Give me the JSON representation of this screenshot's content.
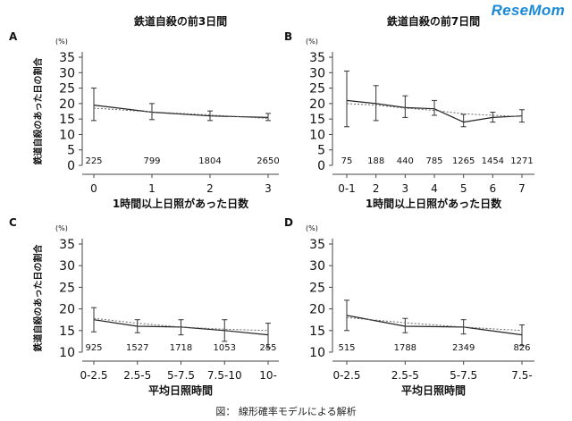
{
  "logo": "ReseMom",
  "caption": "図： 線形確率モデルによる解析",
  "chart_data": [
    {
      "panel": "A",
      "type": "line",
      "title": "鉄道自殺の前3日間",
      "unit": "(%)",
      "ylabel": "鉄道自殺のあった日の割合",
      "xlabel": "1時間以上日照があった日数",
      "categories": [
        "0",
        "1",
        "2",
        "3"
      ],
      "n": [
        "225",
        "799",
        "1804",
        "2650"
      ],
      "ylim": [
        0,
        35
      ],
      "yticks": [
        0,
        5,
        10,
        15,
        20,
        25,
        30,
        35
      ],
      "series": [
        {
          "style": "solid",
          "values": [
            19.5,
            17.2,
            16.0,
            15.5
          ],
          "error_low": [
            14.5,
            14.8,
            14.5,
            14.5
          ],
          "error_high": [
            25.0,
            20.0,
            17.6,
            16.8
          ]
        },
        {
          "style": "dotted",
          "values": [
            18.5,
            17.3,
            16.3,
            15.2
          ]
        }
      ]
    },
    {
      "panel": "B",
      "type": "line",
      "title": "鉄道自殺の前7日間",
      "unit": "(%)",
      "ylabel": "",
      "xlabel": "1時間以上日照があった日数",
      "categories": [
        "0-1",
        "2",
        "3",
        "4",
        "5",
        "6",
        "7"
      ],
      "n": [
        "75",
        "188",
        "440",
        "785",
        "1265",
        "1454",
        "1271"
      ],
      "ylim": [
        0,
        35
      ],
      "yticks": [
        0,
        5,
        10,
        15,
        20,
        25,
        30,
        35
      ],
      "series": [
        {
          "style": "solid",
          "values": [
            21.0,
            20.0,
            18.7,
            18.3,
            14.0,
            15.5,
            16.0
          ],
          "error_low": [
            12.5,
            14.5,
            15.5,
            16.2,
            12.5,
            14.0,
            14.0
          ],
          "error_high": [
            30.5,
            25.8,
            22.5,
            21.0,
            16.5,
            17.2,
            18.0
          ]
        },
        {
          "style": "dotted",
          "values": [
            20.0,
            19.5,
            18.5,
            17.8,
            16.7,
            16.2,
            15.8
          ]
        }
      ]
    },
    {
      "panel": "C",
      "type": "line",
      "title": "",
      "unit": "(%)",
      "ylabel": "鉄道自殺のあった日の割合",
      "xlabel": "平均日照時間",
      "categories": [
        "0-2.5",
        "2.5-5",
        "5-7.5",
        "7.5-10",
        "10-"
      ],
      "n": [
        "925",
        "1527",
        "1718",
        "1053",
        "255"
      ],
      "ylim": [
        10,
        35
      ],
      "yticks": [
        10,
        15,
        20,
        25,
        30,
        35
      ],
      "series": [
        {
          "style": "solid",
          "values": [
            17.5,
            16.0,
            15.8,
            15.0,
            14.0
          ],
          "error_low": [
            14.7,
            14.5,
            14.0,
            12.5,
            11.0
          ],
          "error_high": [
            20.3,
            17.5,
            17.5,
            17.5,
            16.7
          ]
        },
        {
          "style": "dotted",
          "values": [
            17.8,
            16.7,
            15.8,
            15.3,
            15.0
          ]
        }
      ]
    },
    {
      "panel": "D",
      "type": "line",
      "title": "",
      "unit": "(%)",
      "ylabel": "",
      "xlabel": "平均日照時間",
      "categories": [
        "0-2.5",
        "2.5-5",
        "5-7.5",
        "7.5-"
      ],
      "n": [
        "515",
        "1788",
        "2349",
        "826"
      ],
      "ylim": [
        10,
        35
      ],
      "yticks": [
        10,
        15,
        20,
        25,
        30,
        35
      ],
      "series": [
        {
          "style": "solid",
          "values": [
            18.5,
            16.0,
            15.8,
            14.0
          ],
          "error_low": [
            15.0,
            14.5,
            14.2,
            11.5
          ],
          "error_high": [
            22.0,
            17.8,
            17.5,
            16.3
          ]
        },
        {
          "style": "dotted",
          "values": [
            18.0,
            16.8,
            15.8,
            15.0
          ]
        }
      ]
    }
  ]
}
